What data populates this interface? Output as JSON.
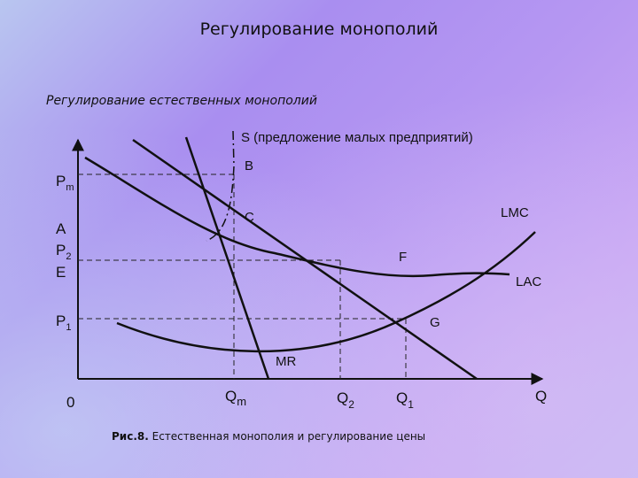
{
  "title": "Регулирование монополий",
  "subtitle": "Регулирование естественных монополий",
  "caption": {
    "prefix": "Рис.8.",
    "text": " Естественная  монополия и регулирование цены"
  },
  "y_labels": {
    "pm": "P",
    "pm_sub": "m",
    "a": "A",
    "p2": "P",
    "p2_sub": "2",
    "e": "E",
    "p1": "P",
    "p1_sub": "1"
  },
  "x_labels": {
    "zero": "0",
    "qm": "Q",
    "qm_sub": "m",
    "q2": "Q",
    "q2_sub": "2",
    "q1": "Q",
    "q1_sub": "1",
    "q": "Q"
  },
  "curve_labels": {
    "s": "S (предложение малых предприятий)",
    "b": "B",
    "c": "C",
    "lmc": "LMC",
    "f": "F",
    "lac": "LAC",
    "g": "G",
    "mr": "MR"
  },
  "colors": {
    "curve": "#111111",
    "guide": "#222222"
  }
}
